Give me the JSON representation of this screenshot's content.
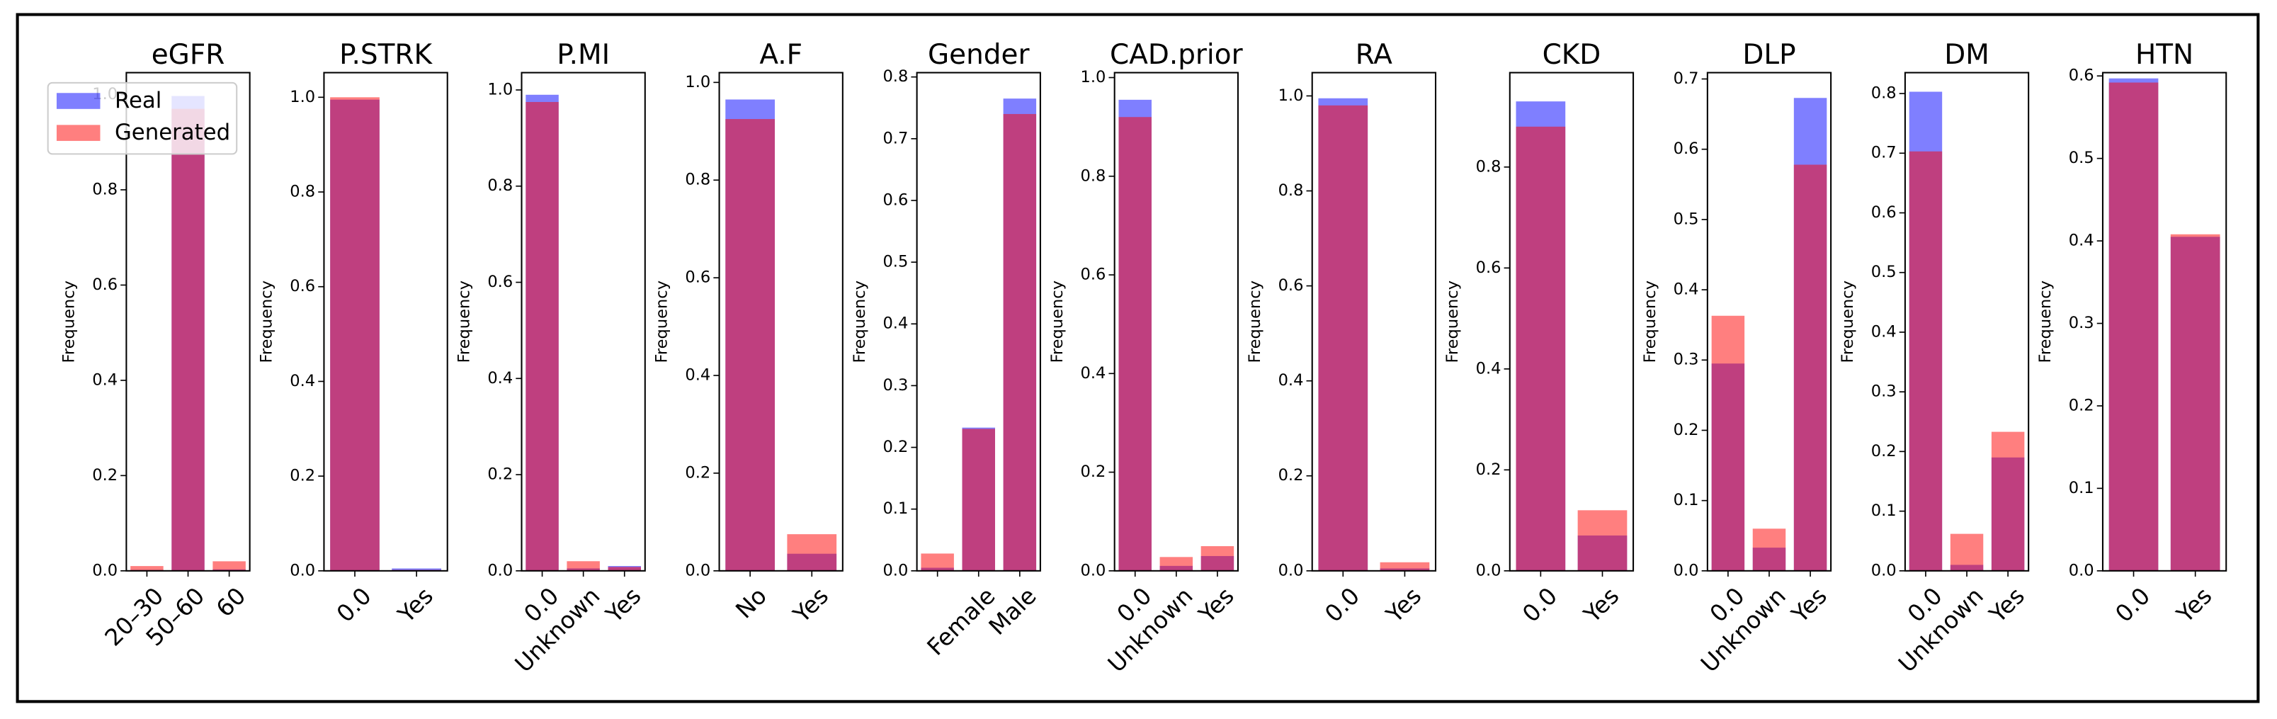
{
  "chart_data": [
    {
      "type": "bar",
      "title": "eGFR",
      "ylabel": "Frequency",
      "categories": [
        "20–30",
        "50–60",
        "60"
      ],
      "series": [
        {
          "name": "Real",
          "color": "#0000ff",
          "values": [
            0.002,
            0.997,
            0.003
          ]
        },
        {
          "name": "Generated",
          "color": "#ff0000",
          "values": [
            0.01,
            0.97,
            0.02
          ]
        }
      ],
      "alpha": 0.5,
      "ylim": [
        0,
        1.046
      ],
      "yticks": [
        {
          "value": 0,
          "label": "0.0"
        },
        0.2,
        0.4,
        0.6,
        0.8,
        {
          "value": 1,
          "label": "1.0"
        }
      ],
      "legend": "upper left"
    },
    {
      "type": "bar",
      "title": "P.STRK",
      "ylabel": "Frequency",
      "categories": [
        "0.0",
        "Yes"
      ],
      "series": [
        {
          "name": "Real",
          "color": "#0000ff",
          "values": [
            0.995,
            0.005
          ]
        },
        {
          "name": "Generated",
          "color": "#ff0000",
          "values": [
            1.0,
            0.002
          ]
        }
      ],
      "alpha": 0.5,
      "ylim": [
        0,
        1.052
      ],
      "yticks": [
        {
          "value": 0,
          "label": "0.0"
        },
        0.2,
        0.4,
        0.6,
        0.8,
        {
          "value": 1,
          "label": "1.0"
        }
      ]
    },
    {
      "type": "bar",
      "title": "P.MI",
      "ylabel": "Frequency",
      "categories": [
        "0.0",
        "Unknown",
        "Yes"
      ],
      "series": [
        {
          "name": "Real",
          "color": "#0000ff",
          "values": [
            0.99,
            0.005,
            0.01
          ]
        },
        {
          "name": "Generated",
          "color": "#ff0000",
          "values": [
            0.975,
            0.02,
            0.008
          ]
        }
      ],
      "alpha": 0.5,
      "ylim": [
        0,
        1.036
      ],
      "yticks": [
        {
          "value": 0,
          "label": "0.0"
        },
        0.2,
        0.4,
        0.6,
        0.8,
        {
          "value": 1,
          "label": "1.0"
        }
      ]
    },
    {
      "type": "bar",
      "title": "A.F",
      "ylabel": "Frequency",
      "categories": [
        "No",
        "Yes"
      ],
      "series": [
        {
          "name": "Real",
          "color": "#0000ff",
          "values": [
            0.965,
            0.035
          ]
        },
        {
          "name": "Generated",
          "color": "#ff0000",
          "values": [
            0.925,
            0.075
          ]
        }
      ],
      "alpha": 0.5,
      "ylim": [
        0,
        1.02
      ],
      "yticks": [
        {
          "value": 0,
          "label": "0.0"
        },
        0.2,
        0.4,
        0.6,
        0.8,
        {
          "value": 1,
          "label": "1.0"
        }
      ]
    },
    {
      "type": "bar",
      "title": "Gender",
      "ylabel": "Frequency",
      "categories": [
        null,
        "Female",
        "Male"
      ],
      "series": [
        {
          "name": "Real",
          "color": "#0000ff",
          "values": [
            0.005,
            0.232,
            0.765
          ]
        },
        {
          "name": "Generated",
          "color": "#ff0000",
          "values": [
            0.028,
            0.23,
            0.74
          ]
        }
      ],
      "alpha": 0.5,
      "ylim": [
        0,
        0.807
      ],
      "yticks": [
        {
          "value": 0,
          "label": "0.0"
        },
        0.1,
        0.2,
        0.3,
        0.4,
        0.5,
        0.6,
        0.7,
        0.8
      ]
    },
    {
      "type": "bar",
      "title": "CAD.prior",
      "ylabel": "Frequency",
      "categories": [
        "0.0",
        "Unknown",
        "Yes"
      ],
      "series": [
        {
          "name": "Real",
          "color": "#0000ff",
          "values": [
            0.955,
            0.01,
            0.03
          ]
        },
        {
          "name": "Generated",
          "color": "#ff0000",
          "values": [
            0.92,
            0.028,
            0.05
          ]
        }
      ],
      "alpha": 0.5,
      "ylim": [
        0,
        1.01
      ],
      "yticks": [
        {
          "value": 0,
          "label": "0.0"
        },
        0.2,
        0.4,
        0.6,
        0.8,
        {
          "value": 1,
          "label": "1.0"
        }
      ]
    },
    {
      "type": "bar",
      "title": "RA",
      "ylabel": "Frequency",
      "categories": [
        "0.0",
        "Yes"
      ],
      "series": [
        {
          "name": "Real",
          "color": "#0000ff",
          "values": [
            0.995,
            0.005
          ]
        },
        {
          "name": "Generated",
          "color": "#ff0000",
          "values": [
            0.98,
            0.018
          ]
        }
      ],
      "alpha": 0.5,
      "ylim": [
        0,
        1.049
      ],
      "yticks": [
        {
          "value": 0,
          "label": "0.0"
        },
        0.2,
        0.4,
        0.6,
        0.8,
        {
          "value": 1,
          "label": "1.0"
        }
      ]
    },
    {
      "type": "bar",
      "title": "CKD",
      "ylabel": "Frequency",
      "categories": [
        "0.0",
        "Yes"
      ],
      "series": [
        {
          "name": "Real",
          "color": "#0000ff",
          "values": [
            0.93,
            0.07
          ]
        },
        {
          "name": "Generated",
          "color": "#ff0000",
          "values": [
            0.88,
            0.12
          ]
        }
      ],
      "alpha": 0.5,
      "ylim": [
        0,
        0.987
      ],
      "yticks": [
        {
          "value": 0,
          "label": "0.0"
        },
        0.2,
        0.4,
        0.6,
        0.8
      ]
    },
    {
      "type": "bar",
      "title": "DLP",
      "ylabel": "Frequency",
      "categories": [
        "0.0",
        "Unknown",
        "Yes"
      ],
      "series": [
        {
          "name": "Real",
          "color": "#0000ff",
          "values": [
            0.295,
            0.033,
            0.673
          ]
        },
        {
          "name": "Generated",
          "color": "#ff0000",
          "values": [
            0.363,
            0.06,
            0.578
          ]
        }
      ],
      "alpha": 0.5,
      "ylim": [
        0,
        0.709
      ],
      "yticks": [
        {
          "value": 0,
          "label": "0.0"
        },
        0.1,
        0.2,
        0.3,
        0.4,
        0.5,
        0.6,
        0.7
      ]
    },
    {
      "type": "bar",
      "title": "DM",
      "ylabel": "Frequency",
      "categories": [
        "0.0",
        "Unknown",
        "Yes"
      ],
      "series": [
        {
          "name": "Real",
          "color": "#0000ff",
          "values": [
            0.803,
            0.01,
            0.19
          ]
        },
        {
          "name": "Generated",
          "color": "#ff0000",
          "values": [
            0.703,
            0.062,
            0.233
          ]
        }
      ],
      "alpha": 0.5,
      "ylim": [
        0,
        0.835
      ],
      "yticks": [
        {
          "value": 0,
          "label": "0.0"
        },
        0.1,
        0.2,
        0.3,
        0.4,
        0.5,
        0.6,
        0.7,
        0.8
      ]
    },
    {
      "type": "bar",
      "title": "HTN",
      "ylabel": "Frequency",
      "categories": [
        "0.0",
        "Yes"
      ],
      "series": [
        {
          "name": "Real",
          "color": "#0000ff",
          "values": [
            0.597,
            0.405
          ]
        },
        {
          "name": "Generated",
          "color": "#ff0000",
          "values": [
            0.592,
            0.408
          ]
        }
      ],
      "alpha": 0.5,
      "ylim": [
        0,
        0.604
      ],
      "yticks": [
        {
          "value": 0,
          "label": "0.0"
        },
        0.1,
        0.2,
        0.3,
        0.4,
        0.5,
        0.6
      ]
    }
  ]
}
